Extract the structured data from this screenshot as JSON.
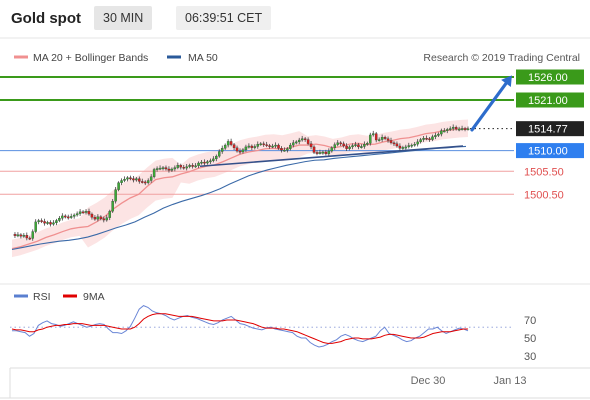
{
  "header": {
    "title": "Gold spot",
    "timeframe": "30 MIN",
    "time": "06:39:51 CET"
  },
  "legend": {
    "item1": "MA 20 + Bollinger Bands",
    "item2": "MA 50",
    "color1": "#f09090",
    "color2": "#2a5a9a"
  },
  "copyright": "Research © 2019 Trading Central",
  "chart_data": {
    "type": "candlestick",
    "x_ticks": [
      "Dec 30",
      "Jan 13"
    ],
    "current_price": "1514.77",
    "levels": [
      {
        "value": "1526.00",
        "kind": "resistance",
        "color": "#3a9a1a"
      },
      {
        "value": "1521.00",
        "kind": "resistance",
        "color": "#3a9a1a"
      },
      {
        "value": "1510.00",
        "kind": "pivot",
        "color": "#2f7fef"
      },
      {
        "value": "1505.50",
        "kind": "support",
        "color": "#e05050"
      },
      {
        "value": "1500.50",
        "kind": "support",
        "color": "#e05050"
      }
    ],
    "price_path": [
      1491.8,
      1491.5,
      1491.7,
      1491.4,
      1491.6,
      1491.0,
      1490.9,
      1492.4,
      1494.5,
      1494.8,
      1494.6,
      1494.2,
      1494.4,
      1494.0,
      1494.3,
      1494.8,
      1495.3,
      1495.8,
      1495.6,
      1495.5,
      1495.7,
      1496.0,
      1496.3,
      1496.7,
      1496.6,
      1496.8,
      1496.2,
      1495.5,
      1495.1,
      1495.6,
      1495.2,
      1494.9,
      1495.4,
      1496.8,
      1499.0,
      1501.5,
      1503.0,
      1503.5,
      1503.8,
      1504.1,
      1503.9,
      1503.6,
      1503.9,
      1503.3,
      1503.2,
      1503.0,
      1503.5,
      1504.3,
      1505.9,
      1506.1,
      1506.2,
      1506.3,
      1506.0,
      1505.7,
      1506.0,
      1506.3,
      1506.8,
      1506.4,
      1506.2,
      1506.5,
      1506.8,
      1506.6,
      1506.7,
      1507.3,
      1507.5,
      1507.3,
      1507.6,
      1507.8,
      1508.2,
      1508.8,
      1509.8,
      1510.5,
      1511.2,
      1512.0,
      1511.3,
      1510.6,
      1509.9,
      1509.7,
      1510.2,
      1510.8,
      1511.0,
      1510.6,
      1510.9,
      1511.4,
      1511.5,
      1511.3,
      1511.1,
      1510.9,
      1511.0,
      1511.2,
      1510.5,
      1510.1,
      1510.1,
      1510.4,
      1511.2,
      1511.7,
      1511.9,
      1512.3,
      1512.6,
      1512.4,
      1511.5,
      1510.8,
      1509.6,
      1509.5,
      1509.6,
      1509.7,
      1509.3,
      1509.9,
      1510.6,
      1511.3,
      1511.7,
      1511.5,
      1511.0,
      1510.4,
      1510.8,
      1511.1,
      1511.3,
      1510.8,
      1510.9,
      1511.4,
      1511.6,
      1513.4,
      1513.7,
      1512.3,
      1512.4,
      1512.9,
      1512.6,
      1512.2,
      1511.7,
      1511.5,
      1511.0,
      1510.5,
      1510.7,
      1510.8,
      1511.1,
      1511.2,
      1511.4,
      1511.9,
      1512.4,
      1512.7,
      1512.6,
      1512.4,
      1513.0,
      1513.3,
      1513.6,
      1514.3,
      1514.3,
      1514.6,
      1514.8,
      1515.1,
      1514.7,
      1514.7,
      1514.8,
      1514.7,
      1514.77
    ],
    "ma20_path": [
      1488.7,
      1489.1,
      1489.7,
      1490.3,
      1491.1,
      1491.7,
      1492.4,
      1493.0,
      1493.3,
      1493.5,
      1494.5,
      1495.7,
      1497.3,
      1498.6,
      1499.7,
      1500.5,
      1502.2,
      1503.7,
      1504.1,
      1504.3,
      1504.9,
      1505.4,
      1506.1,
      1506.6,
      1506.9,
      1507.6,
      1508.4,
      1509.2,
      1509.7,
      1510.0,
      1510.4,
      1510.5,
      1510.3,
      1510.7,
      1511.2,
      1511.2,
      1511.4,
      1511.1,
      1510.6,
      1510.9,
      1511.4,
      1511.6,
      1511.3,
      1511.4,
      1511.9,
      1512.2,
      1512.6,
      1512.8,
      1513.2,
      1513.7,
      1513.9,
      1514.3,
      1514.5,
      1514.7,
      1514.8
    ],
    "ma50_path": [
      1488.5,
      1488.9,
      1489.3,
      1489.7,
      1490.0,
      1490.3,
      1490.5,
      1490.8,
      1491.2,
      1491.8,
      1492.5,
      1493.2,
      1493.8,
      1494.5,
      1495.5,
      1496.4,
      1497.5,
      1498.3,
      1499.0,
      1499.6,
      1500.2,
      1500.9,
      1501.7,
      1502.7,
      1503.6,
      1504.5,
      1505.2,
      1505.8,
      1506.3,
      1506.8,
      1507.2,
      1507.6,
      1507.9,
      1508.0,
      1508.3,
      1508.5,
      1508.7,
      1508.9,
      1509.1,
      1509.3,
      1509.5,
      1509.7,
      1509.9,
      1510.1,
      1510.3,
      1510.5,
      1510.6,
      1510.8,
      1510.9
    ],
    "rsi": {
      "label": "RSI",
      "ma_label": "9MA",
      "ticks": [
        "70",
        "50",
        "30"
      ],
      "rsi_values": [
        58,
        58,
        57,
        56,
        52,
        55,
        64,
        67,
        69,
        66,
        65,
        63,
        64,
        66,
        68,
        66,
        64,
        62,
        63,
        65,
        66,
        65,
        60,
        56,
        56,
        55,
        58,
        63,
        72,
        82,
        86,
        84,
        80,
        78,
        77,
        75,
        72,
        70,
        72,
        74,
        75,
        73,
        72,
        70,
        68,
        66,
        65,
        67,
        70,
        72,
        74,
        70,
        66,
        65,
        63,
        61,
        60,
        59,
        61,
        62,
        60,
        59,
        58,
        57,
        56,
        52,
        50,
        50,
        45,
        42,
        40,
        41,
        43,
        46,
        48,
        52,
        54,
        52,
        49,
        47,
        46,
        48,
        50,
        52,
        58,
        62,
        55,
        53,
        51,
        48,
        46,
        47,
        50,
        52,
        56,
        60,
        60,
        62,
        58,
        55,
        57,
        59,
        61,
        60,
        58
      ],
      "ma_values": [
        60,
        59,
        59,
        58,
        57,
        57,
        59,
        60,
        62,
        63,
        64,
        64,
        65,
        65,
        66,
        66,
        66,
        65,
        64,
        64,
        64,
        64,
        63,
        62,
        61,
        60,
        60,
        60,
        62,
        66,
        71,
        74,
        76,
        77,
        77,
        77,
        76,
        75,
        74,
        74,
        74,
        74,
        73,
        72,
        71,
        70,
        69,
        69,
        69,
        70,
        70,
        70,
        69,
        68,
        67,
        66,
        64,
        62,
        61,
        61,
        61,
        60,
        60,
        59,
        58,
        57,
        55,
        53,
        51,
        49,
        47,
        45,
        44,
        44,
        45,
        46,
        48,
        49,
        50,
        50,
        49,
        49,
        49,
        50,
        51,
        53,
        54,
        54,
        53,
        52,
        51,
        50,
        50,
        50,
        51,
        53,
        55,
        56,
        57,
        57,
        57,
        58,
        59,
        60,
        60
      ]
    }
  }
}
